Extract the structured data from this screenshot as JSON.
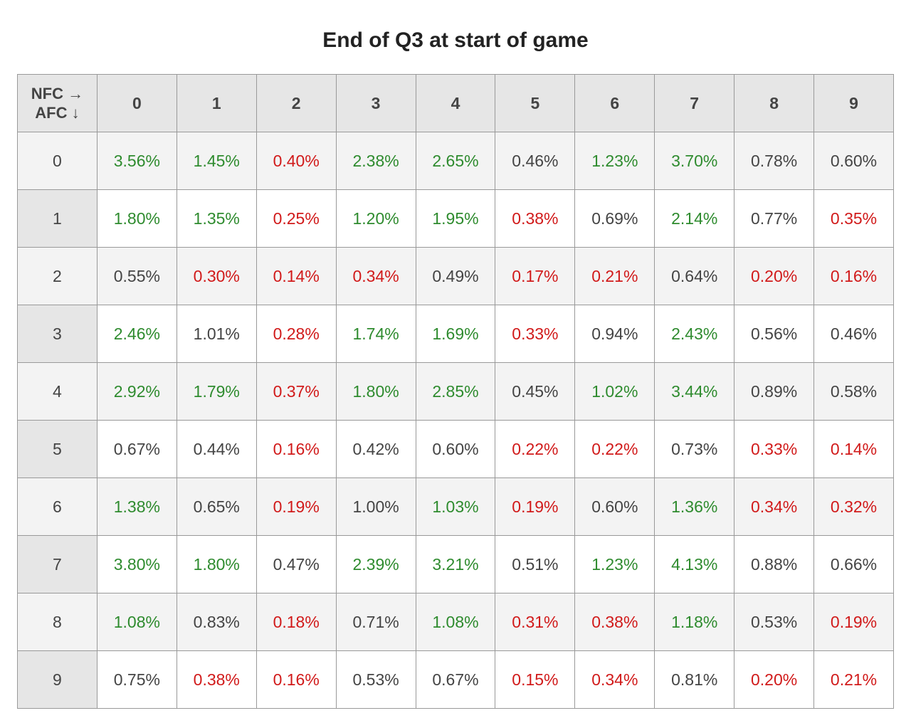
{
  "title": "End of Q3 at start of game",
  "corner_line1": "NFC →",
  "corner_line2": "AFC ↓",
  "columns": [
    "0",
    "1",
    "2",
    "3",
    "4",
    "5",
    "6",
    "7",
    "8",
    "9"
  ],
  "row_headers": [
    "0",
    "1",
    "2",
    "3",
    "4",
    "5",
    "6",
    "7",
    "8",
    "9"
  ],
  "shaded_rows": [
    0,
    2,
    4,
    6,
    8
  ],
  "colors": {
    "green": "#2e8b2e",
    "red": "#d11a1a",
    "black": "#444444",
    "header_bg": "#e6e6e6",
    "shade_bg": "#f3f3f3",
    "border": "#999999",
    "page_bg": "#ffffff",
    "title_color": "#222222"
  },
  "font": {
    "title_size_pt": 22,
    "cell_size_pt": 17,
    "header_weight": 700,
    "cell_weight": 400,
    "family": "Helvetica Neue, Helvetica, Arial, sans-serif"
  },
  "cells": [
    [
      {
        "v": "3.56%",
        "c": "green"
      },
      {
        "v": "1.45%",
        "c": "green"
      },
      {
        "v": "0.40%",
        "c": "red"
      },
      {
        "v": "2.38%",
        "c": "green"
      },
      {
        "v": "2.65%",
        "c": "green"
      },
      {
        "v": "0.46%",
        "c": "black"
      },
      {
        "v": "1.23%",
        "c": "green"
      },
      {
        "v": "3.70%",
        "c": "green"
      },
      {
        "v": "0.78%",
        "c": "black"
      },
      {
        "v": "0.60%",
        "c": "black"
      }
    ],
    [
      {
        "v": "1.80%",
        "c": "green"
      },
      {
        "v": "1.35%",
        "c": "green"
      },
      {
        "v": "0.25%",
        "c": "red"
      },
      {
        "v": "1.20%",
        "c": "green"
      },
      {
        "v": "1.95%",
        "c": "green"
      },
      {
        "v": "0.38%",
        "c": "red"
      },
      {
        "v": "0.69%",
        "c": "black"
      },
      {
        "v": "2.14%",
        "c": "green"
      },
      {
        "v": "0.77%",
        "c": "black"
      },
      {
        "v": "0.35%",
        "c": "red"
      }
    ],
    [
      {
        "v": "0.55%",
        "c": "black"
      },
      {
        "v": "0.30%",
        "c": "red"
      },
      {
        "v": "0.14%",
        "c": "red"
      },
      {
        "v": "0.34%",
        "c": "red"
      },
      {
        "v": "0.49%",
        "c": "black"
      },
      {
        "v": "0.17%",
        "c": "red"
      },
      {
        "v": "0.21%",
        "c": "red"
      },
      {
        "v": "0.64%",
        "c": "black"
      },
      {
        "v": "0.20%",
        "c": "red"
      },
      {
        "v": "0.16%",
        "c": "red"
      }
    ],
    [
      {
        "v": "2.46%",
        "c": "green"
      },
      {
        "v": "1.01%",
        "c": "black"
      },
      {
        "v": "0.28%",
        "c": "red"
      },
      {
        "v": "1.74%",
        "c": "green"
      },
      {
        "v": "1.69%",
        "c": "green"
      },
      {
        "v": "0.33%",
        "c": "red"
      },
      {
        "v": "0.94%",
        "c": "black"
      },
      {
        "v": "2.43%",
        "c": "green"
      },
      {
        "v": "0.56%",
        "c": "black"
      },
      {
        "v": "0.46%",
        "c": "black"
      }
    ],
    [
      {
        "v": "2.92%",
        "c": "green"
      },
      {
        "v": "1.79%",
        "c": "green"
      },
      {
        "v": "0.37%",
        "c": "red"
      },
      {
        "v": "1.80%",
        "c": "green"
      },
      {
        "v": "2.85%",
        "c": "green"
      },
      {
        "v": "0.45%",
        "c": "black"
      },
      {
        "v": "1.02%",
        "c": "green"
      },
      {
        "v": "3.44%",
        "c": "green"
      },
      {
        "v": "0.89%",
        "c": "black"
      },
      {
        "v": "0.58%",
        "c": "black"
      }
    ],
    [
      {
        "v": "0.67%",
        "c": "black"
      },
      {
        "v": "0.44%",
        "c": "black"
      },
      {
        "v": "0.16%",
        "c": "red"
      },
      {
        "v": "0.42%",
        "c": "black"
      },
      {
        "v": "0.60%",
        "c": "black"
      },
      {
        "v": "0.22%",
        "c": "red"
      },
      {
        "v": "0.22%",
        "c": "red"
      },
      {
        "v": "0.73%",
        "c": "black"
      },
      {
        "v": "0.33%",
        "c": "red"
      },
      {
        "v": "0.14%",
        "c": "red"
      }
    ],
    [
      {
        "v": "1.38%",
        "c": "green"
      },
      {
        "v": "0.65%",
        "c": "black"
      },
      {
        "v": "0.19%",
        "c": "red"
      },
      {
        "v": "1.00%",
        "c": "black"
      },
      {
        "v": "1.03%",
        "c": "green"
      },
      {
        "v": "0.19%",
        "c": "red"
      },
      {
        "v": "0.60%",
        "c": "black"
      },
      {
        "v": "1.36%",
        "c": "green"
      },
      {
        "v": "0.34%",
        "c": "red"
      },
      {
        "v": "0.32%",
        "c": "red"
      }
    ],
    [
      {
        "v": "3.80%",
        "c": "green"
      },
      {
        "v": "1.80%",
        "c": "green"
      },
      {
        "v": "0.47%",
        "c": "black"
      },
      {
        "v": "2.39%",
        "c": "green"
      },
      {
        "v": "3.21%",
        "c": "green"
      },
      {
        "v": "0.51%",
        "c": "black"
      },
      {
        "v": "1.23%",
        "c": "green"
      },
      {
        "v": "4.13%",
        "c": "green"
      },
      {
        "v": "0.88%",
        "c": "black"
      },
      {
        "v": "0.66%",
        "c": "black"
      }
    ],
    [
      {
        "v": "1.08%",
        "c": "green"
      },
      {
        "v": "0.83%",
        "c": "black"
      },
      {
        "v": "0.18%",
        "c": "red"
      },
      {
        "v": "0.71%",
        "c": "black"
      },
      {
        "v": "1.08%",
        "c": "green"
      },
      {
        "v": "0.31%",
        "c": "red"
      },
      {
        "v": "0.38%",
        "c": "red"
      },
      {
        "v": "1.18%",
        "c": "green"
      },
      {
        "v": "0.53%",
        "c": "black"
      },
      {
        "v": "0.19%",
        "c": "red"
      }
    ],
    [
      {
        "v": "0.75%",
        "c": "black"
      },
      {
        "v": "0.38%",
        "c": "red"
      },
      {
        "v": "0.16%",
        "c": "red"
      },
      {
        "v": "0.53%",
        "c": "black"
      },
      {
        "v": "0.67%",
        "c": "black"
      },
      {
        "v": "0.15%",
        "c": "red"
      },
      {
        "v": "0.34%",
        "c": "red"
      },
      {
        "v": "0.81%",
        "c": "black"
      },
      {
        "v": "0.20%",
        "c": "red"
      },
      {
        "v": "0.21%",
        "c": "red"
      }
    ]
  ]
}
